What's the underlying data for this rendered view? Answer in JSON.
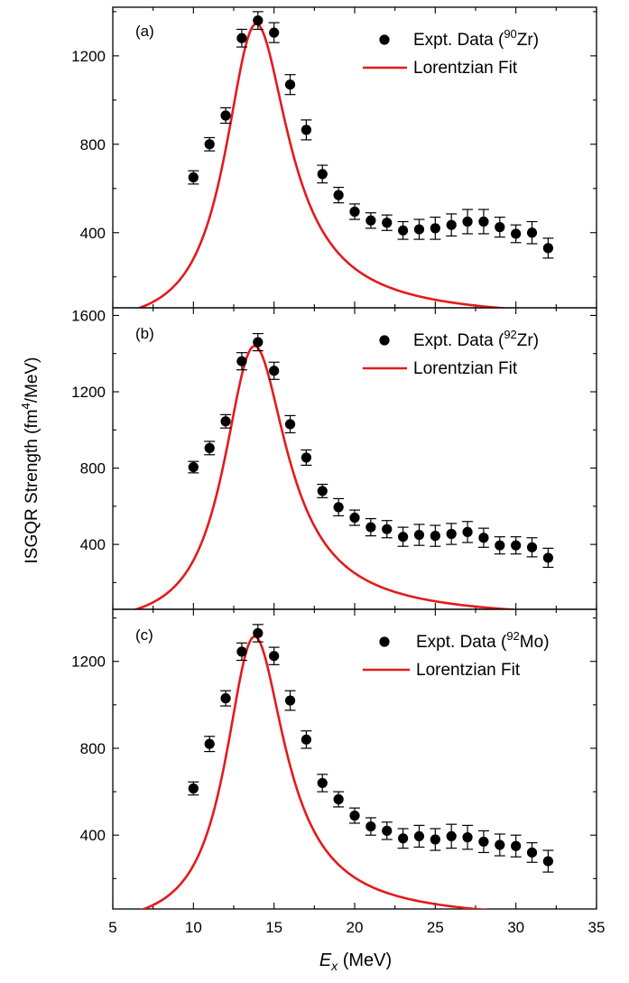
{
  "figure": {
    "ylabel_main": "ISGQR Strength (fm",
    "ylabel_sup": "4",
    "ylabel_tail": "/MeV)",
    "xlabel_var": "E",
    "xlabel_sub": "x",
    "xlabel_unit": " (MeV)",
    "x_ticks": [
      "5",
      "10",
      "15",
      "20",
      "25",
      "30",
      "35"
    ]
  },
  "colors": {
    "data": "#000000",
    "fit": "#e41a1c"
  },
  "chart_data": [
    {
      "type": "scatter",
      "panel_label": "(a)",
      "legend": {
        "data_prefix": "Expt. Data (",
        "data_sup": "90",
        "data_suffix": "Zr)",
        "fit": "Lorentzian Fit",
        "placement": "top-right"
      },
      "xlim": [
        5,
        35
      ],
      "ylim": [
        60,
        1420
      ],
      "yticks": [
        400,
        800,
        1200
      ],
      "x": [
        10,
        11,
        12,
        13,
        14,
        15,
        16,
        17,
        18,
        19,
        20,
        21,
        22,
        23,
        24,
        25,
        26,
        27,
        28,
        29,
        30,
        31,
        32
      ],
      "y": [
        650,
        800,
        930,
        1280,
        1360,
        1305,
        1070,
        865,
        665,
        570,
        495,
        455,
        445,
        410,
        415,
        420,
        435,
        450,
        450,
        425,
        395,
        400,
        330
      ],
      "err": [
        30,
        30,
        35,
        40,
        40,
        45,
        45,
        45,
        40,
        35,
        35,
        35,
        35,
        40,
        45,
        50,
        50,
        55,
        55,
        45,
        40,
        50,
        45
      ],
      "fit": {
        "name": "Lorentzian Fit",
        "peak_energy": 13.9,
        "peak_value": 1345,
        "width": 4.8
      }
    },
    {
      "type": "scatter",
      "panel_label": "(b)",
      "legend": {
        "data_prefix": "Expt. Data (",
        "data_sup": "92",
        "data_suffix": "Zr)",
        "fit": "Lorentzian Fit",
        "placement": "top-right"
      },
      "xlim": [
        5,
        35
      ],
      "ylim": [
        60,
        1640
      ],
      "yticks": [
        400,
        800,
        1200,
        1600
      ],
      "x": [
        10,
        11,
        12,
        13,
        14,
        15,
        16,
        17,
        18,
        19,
        20,
        21,
        22,
        23,
        24,
        25,
        26,
        27,
        28,
        29,
        30,
        31,
        32
      ],
      "y": [
        805,
        905,
        1045,
        1360,
        1460,
        1310,
        1030,
        855,
        680,
        595,
        540,
        490,
        480,
        440,
        450,
        445,
        455,
        465,
        435,
        395,
        395,
        385,
        330
      ],
      "err": [
        30,
        35,
        35,
        45,
        45,
        45,
        45,
        40,
        35,
        45,
        40,
        45,
        45,
        50,
        55,
        55,
        55,
        55,
        50,
        45,
        45,
        50,
        50
      ],
      "fit": {
        "name": "Lorentzian Fit",
        "peak_energy": 13.8,
        "peak_value": 1440,
        "width": 4.8
      }
    },
    {
      "type": "scatter",
      "panel_label": "(c)",
      "legend": {
        "data_prefix": "Expt. Data (",
        "data_sup": "92",
        "data_suffix": "Mo)",
        "fit": "Lorentzian Fit",
        "placement": "top-right"
      },
      "xlim": [
        5,
        35
      ],
      "ylim": [
        60,
        1440
      ],
      "yticks": [
        400,
        800,
        1200
      ],
      "x": [
        10,
        11,
        12,
        13,
        14,
        15,
        16,
        17,
        18,
        19,
        20,
        21,
        22,
        23,
        24,
        25,
        26,
        27,
        28,
        29,
        30,
        31,
        32
      ],
      "y": [
        615,
        820,
        1030,
        1245,
        1330,
        1225,
        1020,
        840,
        640,
        565,
        490,
        440,
        420,
        385,
        395,
        380,
        395,
        390,
        370,
        355,
        350,
        320,
        280
      ],
      "err": [
        30,
        35,
        35,
        40,
        40,
        40,
        45,
        40,
        40,
        35,
        35,
        40,
        40,
        45,
        50,
        50,
        55,
        55,
        50,
        50,
        50,
        45,
        50
      ],
      "fit": {
        "name": "Lorentzian Fit",
        "peak_energy": 13.8,
        "peak_value": 1315,
        "width": 4.5
      }
    }
  ]
}
